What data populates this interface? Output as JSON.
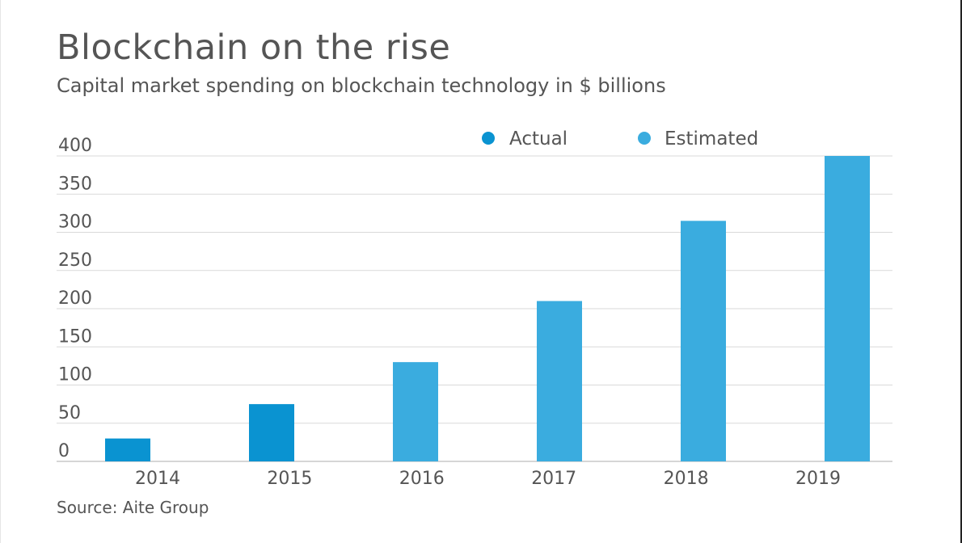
{
  "chart_data": {
    "type": "bar",
    "title": "Blockchain on the rise",
    "subtitle": "Capital market spending on blockchain technology in $ billions",
    "source": "Source: Aite Group",
    "categories": [
      "2014",
      "2015",
      "2016",
      "2017",
      "2018",
      "2019"
    ],
    "values": [
      30,
      75,
      130,
      210,
      315,
      400
    ],
    "status": [
      "Actual",
      "Actual",
      "Estimated",
      "Estimated",
      "Estimated",
      "Estimated"
    ],
    "legend": [
      {
        "name": "Actual",
        "color": "#0a93d1"
      },
      {
        "name": "Estimated",
        "color": "#3aacdf"
      }
    ],
    "legend_position": "top-right",
    "yticks": [
      "0",
      "50",
      "100",
      "150",
      "200",
      "250",
      "300",
      "350",
      "400"
    ],
    "ylim": [
      0,
      400
    ],
    "grid": true,
    "colors": {
      "text": "#555555",
      "grid": "#d9d9d9",
      "axis": "#c8c8c8"
    }
  }
}
